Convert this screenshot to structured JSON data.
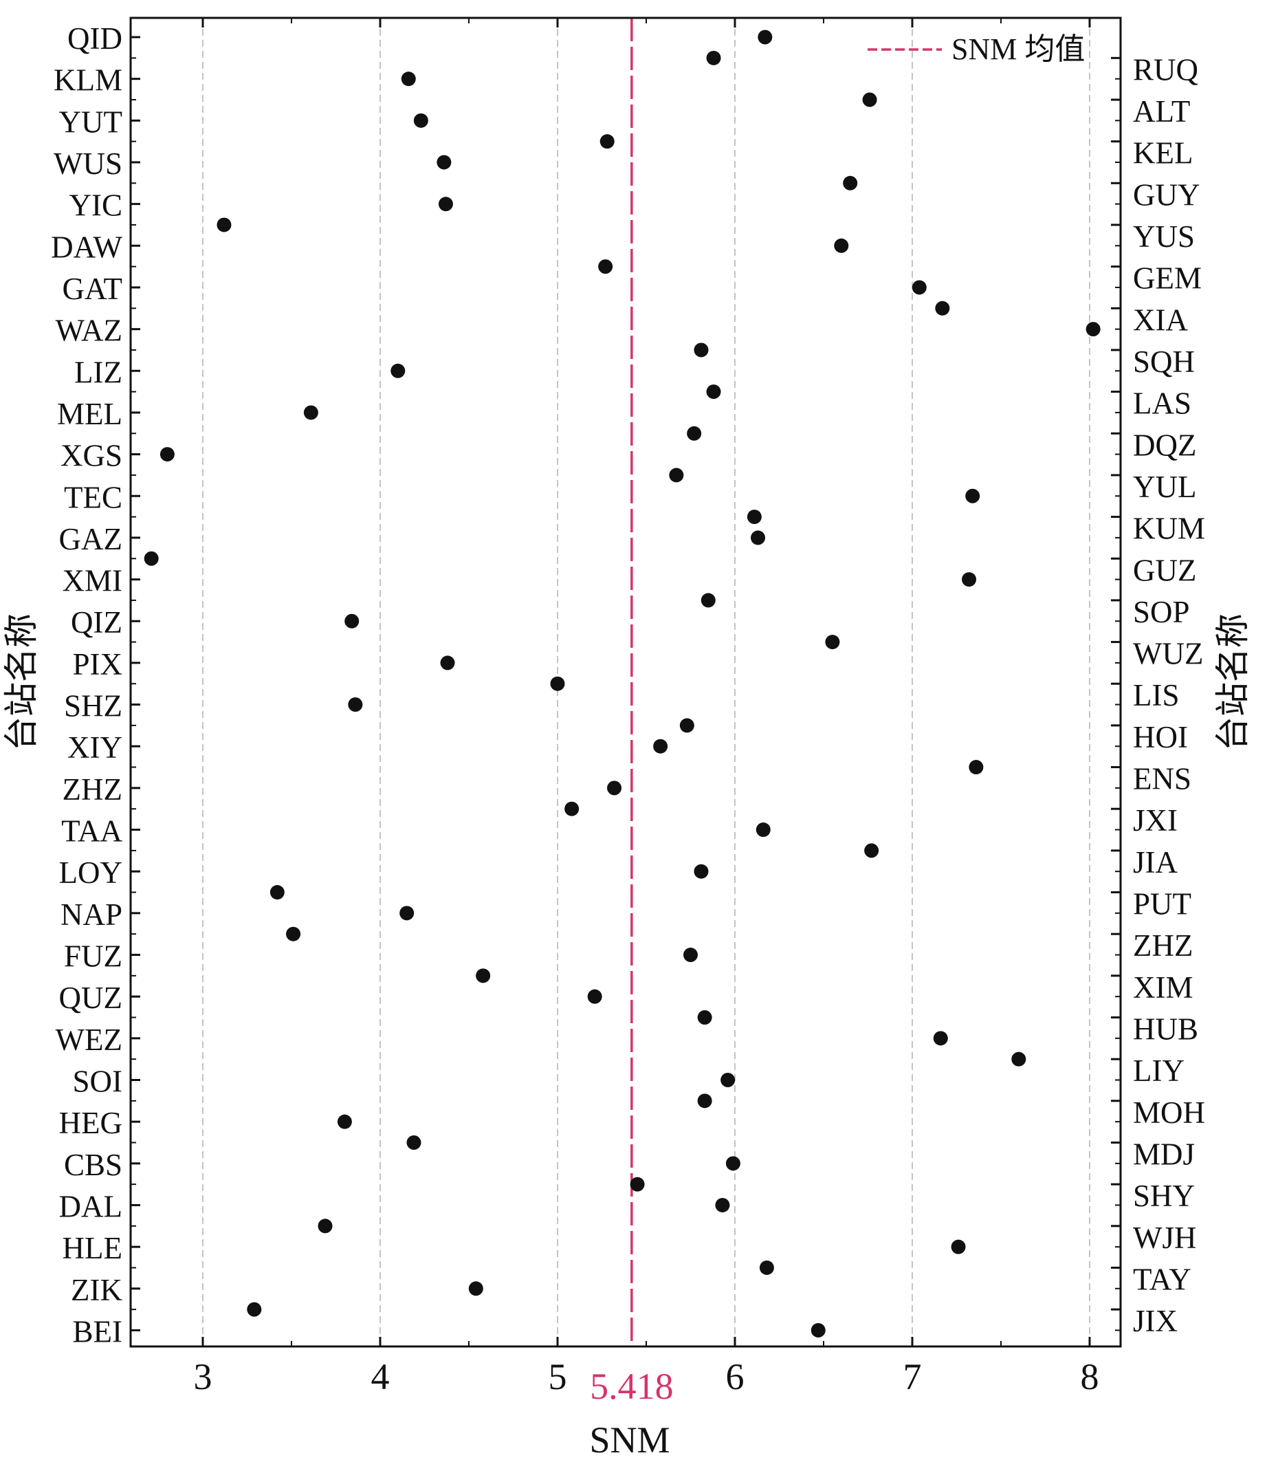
{
  "chart_data": {
    "type": "scatter",
    "xlabel": "SNM",
    "ylabel_left": "台站名称",
    "ylabel_right": "台站名称",
    "xlim": [
      2.6,
      8.2
    ],
    "xticks": [
      3,
      4,
      5,
      6,
      7,
      8
    ],
    "grid": "vertical dashed",
    "legend": {
      "position": "top-right",
      "label": "SNM 均值"
    },
    "mean": {
      "value": 5.418,
      "label": "5.418",
      "color": "#d6336c"
    },
    "left_stations": [
      "QID",
      "KLM",
      "YUT",
      "WUS",
      "YIC",
      "DAW",
      "GAT",
      "WAZ",
      "LIZ",
      "MEL",
      "XGS",
      "TEC",
      "GAZ",
      "XMI",
      "QIZ",
      "PIX",
      "SHZ",
      "XIY",
      "ZHZ",
      "TAA",
      "LOY",
      "NAP",
      "FUZ",
      "QUZ",
      "WEZ",
      "SOI",
      "HEG",
      "CBS",
      "DAL",
      "HLE",
      "ZIK",
      "BEI"
    ],
    "right_stations": [
      "RUQ",
      "ALT",
      "KEL",
      "GUY",
      "YUS",
      "GEM",
      "XIA",
      "SQH",
      "LAS",
      "DQZ",
      "YUL",
      "KUM",
      "GUZ",
      "SOP",
      "WUZ",
      "LIS",
      "HOI",
      "ENS",
      "JXI",
      "JIA",
      "PUT",
      "ZHZ",
      "XIM",
      "HUB",
      "LIY",
      "MOH",
      "MDJ",
      "SHY",
      "WJH",
      "TAY",
      "JIX"
    ],
    "point_color": "#111111",
    "points": [
      {
        "station": "QID",
        "side": "left",
        "snm": 6.17
      },
      {
        "station": "RUQ",
        "side": "right",
        "snm": 5.88
      },
      {
        "station": "KLM",
        "side": "left",
        "snm": 4.16
      },
      {
        "station": "ALT",
        "side": "right",
        "snm": 6.76
      },
      {
        "station": "YUT",
        "side": "left",
        "snm": 4.23
      },
      {
        "station": "KEL",
        "side": "right",
        "snm": 5.28
      },
      {
        "station": "WUS",
        "side": "left",
        "snm": 4.36
      },
      {
        "station": "GUY",
        "side": "right",
        "snm": 6.65
      },
      {
        "station": "YIC",
        "side": "left",
        "snm": 4.37
      },
      {
        "station": "YUS",
        "side": "right",
        "snm": 3.12
      },
      {
        "station": "DAW",
        "side": "left",
        "snm": 6.6
      },
      {
        "station": "GEM",
        "side": "right",
        "snm": 5.27
      },
      {
        "station": "GAT",
        "side": "left",
        "snm": 7.04
      },
      {
        "station": "XIA",
        "side": "right",
        "snm": 7.17
      },
      {
        "station": "WAZ",
        "side": "left",
        "snm": 8.02
      },
      {
        "station": "SQH",
        "side": "right",
        "snm": 5.81
      },
      {
        "station": "LIZ",
        "side": "left",
        "snm": 4.1
      },
      {
        "station": "LAS",
        "side": "right",
        "snm": 5.88
      },
      {
        "station": "MEL",
        "side": "left",
        "snm": 3.61
      },
      {
        "station": "DQZ",
        "side": "right",
        "snm": 5.77
      },
      {
        "station": "XGS",
        "side": "left",
        "snm": 2.8
      },
      {
        "station": "YUL",
        "side": "right",
        "snm": 5.67
      },
      {
        "station": "TEC",
        "side": "left",
        "snm": 7.34
      },
      {
        "station": "KUM",
        "side": "right",
        "snm": 6.11
      },
      {
        "station": "GAZ",
        "side": "left",
        "snm": 6.13
      },
      {
        "station": "GUZ",
        "side": "right",
        "snm": 2.71
      },
      {
        "station": "XMI",
        "side": "left",
        "snm": 7.32
      },
      {
        "station": "SOP",
        "side": "right",
        "snm": 5.85
      },
      {
        "station": "QIZ",
        "side": "left",
        "snm": 3.84
      },
      {
        "station": "WUZ",
        "side": "right",
        "snm": 6.55
      },
      {
        "station": "PIX",
        "side": "left",
        "snm": 4.38
      },
      {
        "station": "LIS",
        "side": "right",
        "snm": 5.0
      },
      {
        "station": "SHZ",
        "side": "left",
        "snm": 3.86
      },
      {
        "station": "HOI",
        "side": "right",
        "snm": 5.73
      },
      {
        "station": "XIY",
        "side": "left",
        "snm": 5.58
      },
      {
        "station": "ENS",
        "side": "right",
        "snm": 7.36
      },
      {
        "station": "ZHZ",
        "side": "left",
        "snm": 5.32
      },
      {
        "station": "JXI",
        "side": "right",
        "snm": 5.08
      },
      {
        "station": "TAA",
        "side": "left",
        "snm": 6.16
      },
      {
        "station": "JIA",
        "side": "right",
        "snm": 6.77
      },
      {
        "station": "LOY",
        "side": "left",
        "snm": 5.81
      },
      {
        "station": "PUT",
        "side": "right",
        "snm": 3.42
      },
      {
        "station": "NAP",
        "side": "left",
        "snm": 4.15
      },
      {
        "station": "ZHZ",
        "side": "right",
        "snm": 3.51
      },
      {
        "station": "FUZ",
        "side": "left",
        "snm": 5.75
      },
      {
        "station": "XIM",
        "side": "right",
        "snm": 4.58
      },
      {
        "station": "QUZ",
        "side": "left",
        "snm": 5.21
      },
      {
        "station": "HUB",
        "side": "right",
        "snm": 5.83
      },
      {
        "station": "WEZ",
        "side": "left",
        "snm": 7.16
      },
      {
        "station": "LIY",
        "side": "right",
        "snm": 7.6
      },
      {
        "station": "SOI",
        "side": "left",
        "snm": 5.96
      },
      {
        "station": "MOH",
        "side": "right",
        "snm": 5.83
      },
      {
        "station": "HEG",
        "side": "left",
        "snm": 3.8
      },
      {
        "station": "MDJ",
        "side": "right",
        "snm": 4.19
      },
      {
        "station": "CBS",
        "side": "left",
        "snm": 5.99
      },
      {
        "station": "SHY",
        "side": "right",
        "snm": 5.45
      },
      {
        "station": "DAL",
        "side": "left",
        "snm": 5.93
      },
      {
        "station": "WJH",
        "side": "right",
        "snm": 3.69
      },
      {
        "station": "HLE",
        "side": "left",
        "snm": 7.26
      },
      {
        "station": "TAY",
        "side": "right",
        "snm": 6.18
      },
      {
        "station": "ZIK",
        "side": "left",
        "snm": 4.54
      },
      {
        "station": "JIX",
        "side": "right",
        "snm": 3.29
      },
      {
        "station": "BEI",
        "side": "left",
        "snm": 6.47
      }
    ]
  }
}
